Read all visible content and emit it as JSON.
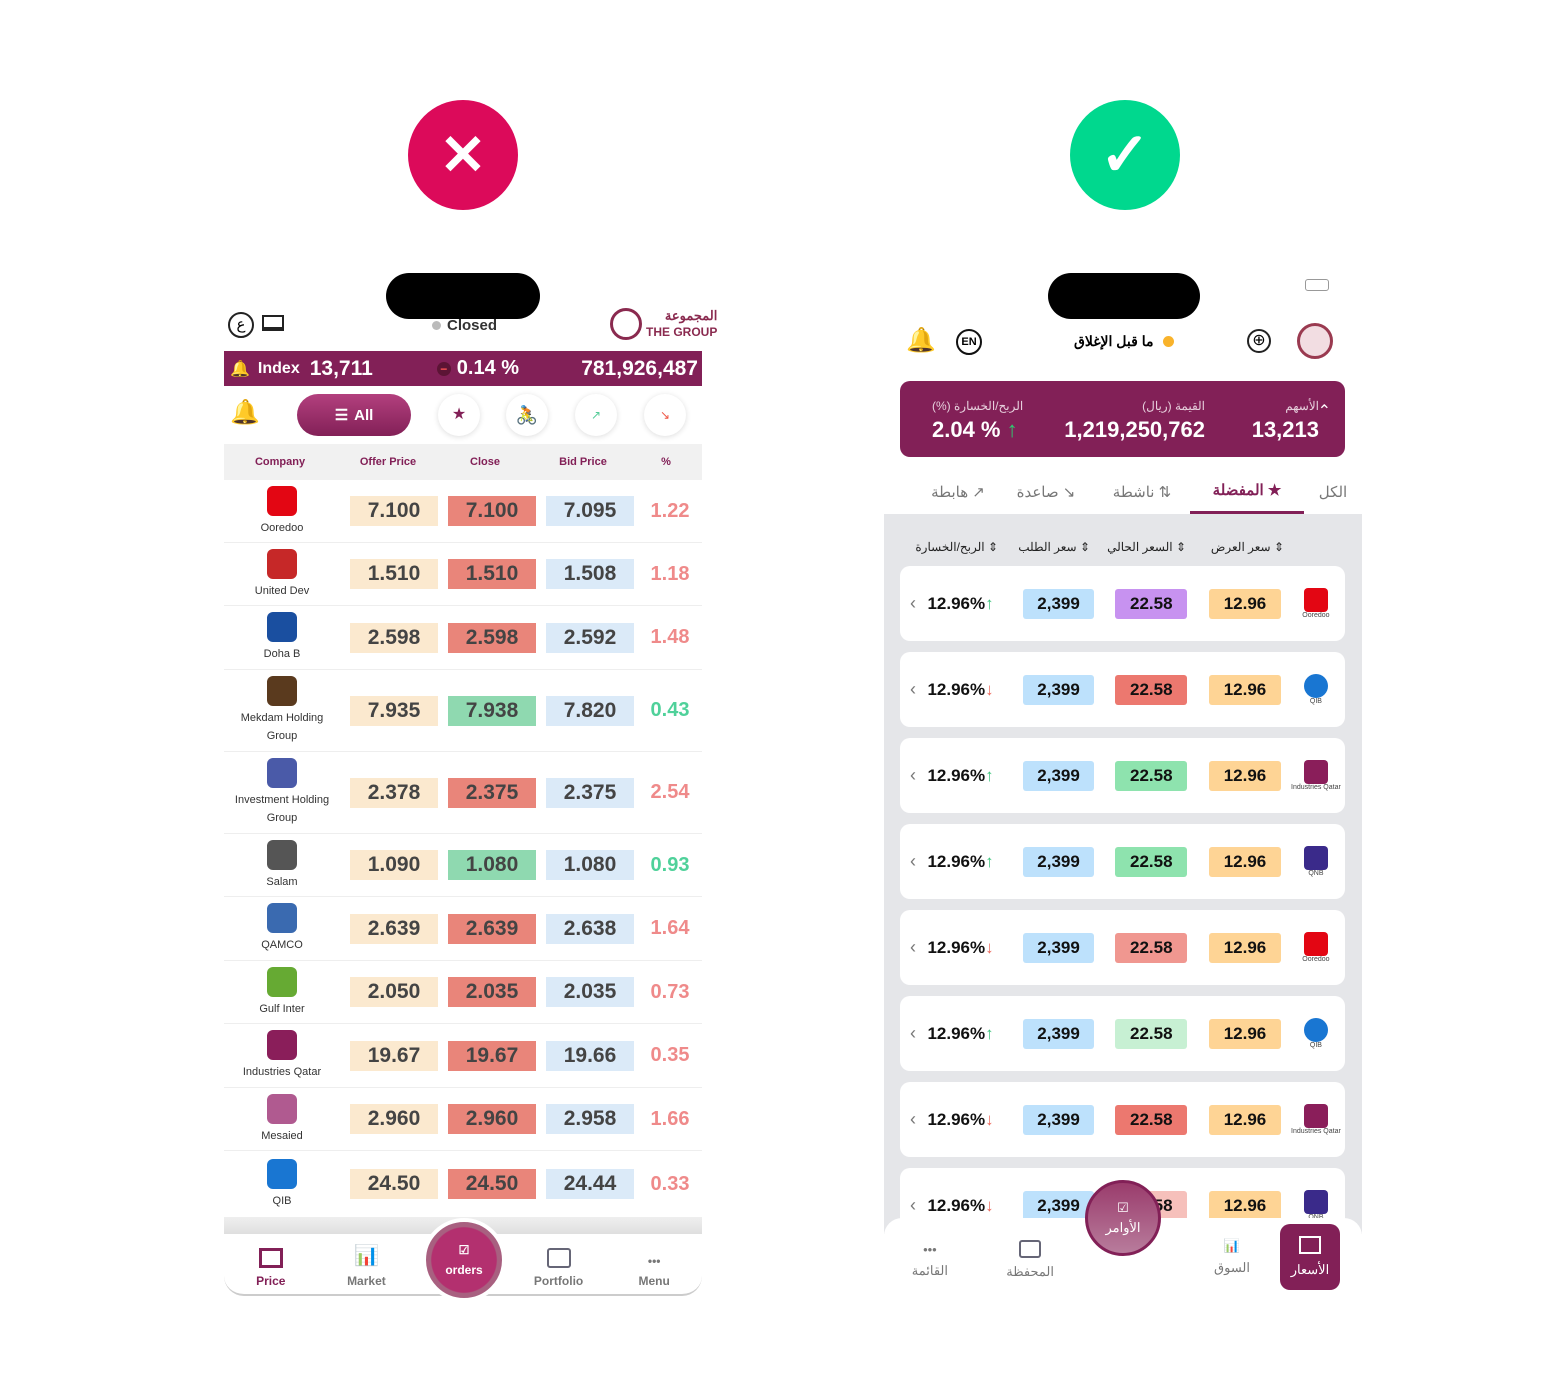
{
  "badges": {
    "wrong": "✕",
    "right": "✓",
    "wrong_color": "#dc0a5a",
    "right_color": "#00d88e"
  },
  "left": {
    "lang_label": "ع",
    "status": "Closed",
    "logo_ar": "المجموعة",
    "logo_en": "THE GROUP",
    "index_label": "Index",
    "index_value": "13,711",
    "change": "0.14 %",
    "volume": "781,926,487",
    "filter_all": "All",
    "headers": [
      "Company",
      "Offer Price",
      "Close",
      "Bid Price",
      "%"
    ],
    "rows": [
      {
        "name": "Ooredoo",
        "offer": "7.100",
        "close": "7.100",
        "bid": "7.095",
        "pct": "1.22",
        "dir": "down"
      },
      {
        "name": "United Dev",
        "offer": "1.510",
        "close": "1.510",
        "bid": "1.508",
        "pct": "1.18",
        "dir": "down"
      },
      {
        "name": "Doha B",
        "offer": "2.598",
        "close": "2.598",
        "bid": "2.592",
        "pct": "1.48",
        "dir": "down"
      },
      {
        "name": "Mekdam Holding Group",
        "offer": "7.935",
        "close": "7.938",
        "bid": "7.820",
        "pct": "0.43",
        "dir": "up"
      },
      {
        "name": "Investment Holding Group",
        "offer": "2.378",
        "close": "2.375",
        "bid": "2.375",
        "pct": "2.54",
        "dir": "down"
      },
      {
        "name": "Salam",
        "offer": "1.090",
        "close": "1.080",
        "bid": "1.080",
        "pct": "0.93",
        "dir": "up"
      },
      {
        "name": "QAMCO",
        "offer": "2.639",
        "close": "2.639",
        "bid": "2.638",
        "pct": "1.64",
        "dir": "down"
      },
      {
        "name": "Gulf Inter",
        "offer": "2.050",
        "close": "2.035",
        "bid": "2.035",
        "pct": "0.73",
        "dir": "down"
      },
      {
        "name": "Industries Qatar",
        "offer": "19.67",
        "close": "19.67",
        "bid": "19.66",
        "pct": "0.35",
        "dir": "down"
      },
      {
        "name": "Mesaied",
        "offer": "2.960",
        "close": "2.960",
        "bid": "2.958",
        "pct": "1.66",
        "dir": "down"
      },
      {
        "name": "QIB",
        "offer": "24.50",
        "close": "24.50",
        "bid": "24.44",
        "pct": "0.33",
        "dir": "down"
      }
    ],
    "nav": [
      "Price",
      "Market",
      "orders",
      "Portfolio",
      "Menu"
    ]
  },
  "right": {
    "lang_label": "EN",
    "status": "ما قبل الإغلاق",
    "shares_label": "الأسهم",
    "shares_value": "13,213",
    "value_label": "القيمة (ريال)",
    "value_value": "1,219,250,762",
    "pl_label": "الربح/الخسارة (%)",
    "pl_value": "2.04 %",
    "tabs": [
      "الكل",
      "المفضلة",
      "ناشطة",
      "صاعدة",
      "هابطة"
    ],
    "headers": [
      "سعر العرض",
      "السعر الحالي",
      "سعر الطلب",
      "الربح/الخسارة"
    ],
    "rows": [
      {
        "name": "Ooredoo",
        "offer": "12.96",
        "current": "22.58",
        "bid": "2,399",
        "pl": "12.96%",
        "dir": "up",
        "color": "#c792f0"
      },
      {
        "name": "QIB",
        "offer": "12.96",
        "current": "22.58",
        "bid": "2,399",
        "pl": "12.96%",
        "dir": "down",
        "color": "#ec786f"
      },
      {
        "name": "Industries Qatar",
        "offer": "12.96",
        "current": "22.58",
        "bid": "2,399",
        "pl": "12.96%",
        "dir": "up",
        "color": "#8ee3ae"
      },
      {
        "name": "QNB",
        "offer": "12.96",
        "current": "22.58",
        "bid": "2,399",
        "pl": "12.96%",
        "dir": "up",
        "color": "#8ee3ae"
      },
      {
        "name": "Ooredoo",
        "offer": "12.96",
        "current": "22.58",
        "bid": "2,399",
        "pl": "12.96%",
        "dir": "down",
        "color": "#f09790"
      },
      {
        "name": "QIB",
        "offer": "12.96",
        "current": "22.58",
        "bid": "2,399",
        "pl": "12.96%",
        "dir": "up",
        "color": "#c7f0d3"
      },
      {
        "name": "Industries Qatar",
        "offer": "12.96",
        "current": "22.58",
        "bid": "2,399",
        "pl": "12.96%",
        "dir": "down",
        "color": "#ec786f"
      },
      {
        "name": "QNB",
        "offer": "12.96",
        "current": "22.58",
        "bid": "2,399",
        "pl": "12.96%",
        "dir": "down",
        "color": "#f6c0bb"
      }
    ],
    "nav": [
      "الأسعار",
      "السوق",
      "الأوامر",
      "المحفظة",
      "القائمة"
    ]
  }
}
